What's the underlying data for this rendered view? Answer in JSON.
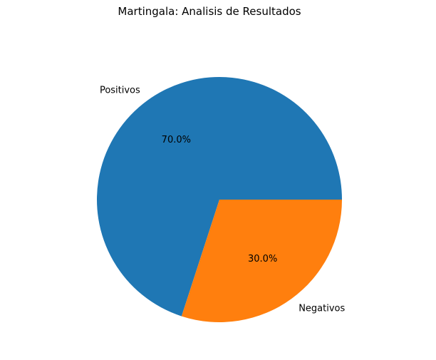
{
  "chart_data": {
    "type": "pie",
    "title": "Martingala: Analisis de Resultados",
    "categories": [
      "Positivos",
      "Negativos"
    ],
    "values": [
      70,
      30
    ],
    "percent_labels": [
      "70.0%",
      "30.0%"
    ],
    "colors": [
      "#1f77b4",
      "#ff7f0e"
    ],
    "start_angle_deg": 0,
    "direction": "counterclockwise",
    "legend": "none"
  }
}
